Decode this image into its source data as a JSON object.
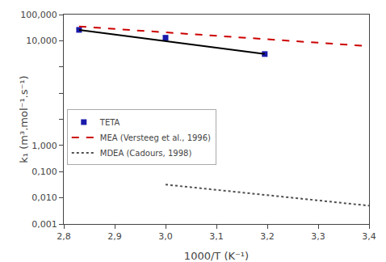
{
  "chart_data": {
    "type": "line",
    "xlabel": "1000/T (K⁻¹)",
    "ylabel": "k₁ (m³.mol⁻¹.s⁻¹)",
    "log": "y",
    "grid": false,
    "legend": "lower left",
    "xlim": [
      2.8,
      3.4
    ],
    "ylim": [
      0.001,
      100000
    ],
    "xticks": [
      {
        "value": 2.8,
        "label": "2,8"
      },
      {
        "value": 2.9,
        "label": "2,9"
      },
      {
        "value": 3.0,
        "label": "3,0"
      },
      {
        "value": 3.1,
        "label": "3,1"
      },
      {
        "value": 3.2,
        "label": "3,2"
      },
      {
        "value": 3.3,
        "label": "3,3"
      },
      {
        "value": 3.4,
        "label": "3,4"
      }
    ],
    "yticks": [
      {
        "value": 0.001,
        "label": "0,001"
      },
      {
        "value": 0.01,
        "label": "0,010"
      },
      {
        "value": 0.1,
        "label": "0,100"
      },
      {
        "value": 1,
        "label": "1,000"
      },
      {
        "value": 10,
        "label": ""
      },
      {
        "value": 100,
        "label": ""
      },
      {
        "value": 1000,
        "label": ""
      },
      {
        "value": 10000,
        "label": "10,000"
      },
      {
        "value": 100000,
        "label": "100,000"
      }
    ],
    "series": [
      {
        "name": "TETA",
        "type": "scatter",
        "marker": "square",
        "color": "#1a1aaa",
        "x": [
          2.83,
          3.0,
          3.195
        ],
        "values": [
          26000,
          13000,
          3100
        ]
      },
      {
        "type": "line",
        "line_style": "solid",
        "color": "black",
        "x": [
          2.83,
          3.195
        ],
        "values": [
          26000,
          3100
        ]
      },
      {
        "name": "MEA (Versteeg et al., 1996)",
        "type": "line",
        "line_style": "dashed",
        "color": "#CC0000",
        "x": [
          2.83,
          3.4
        ],
        "values": [
          35000,
          6200
        ]
      },
      {
        "name": "MDEA (Cadours, 1998)",
        "type": "line",
        "line_style": "dotted",
        "color": "#505050",
        "x": [
          3.0,
          3.4
        ],
        "values": [
          0.032,
          0.005
        ]
      }
    ]
  }
}
